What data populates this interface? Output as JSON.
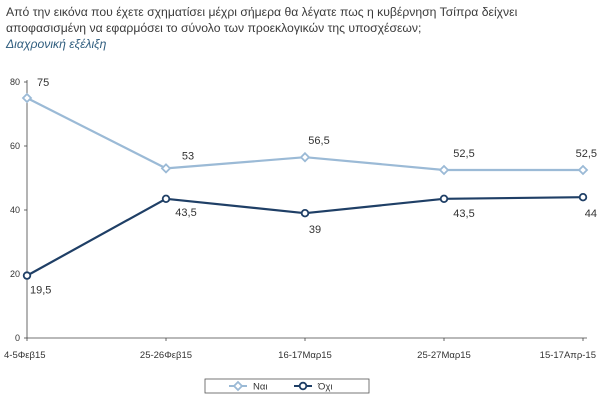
{
  "header": {
    "title": "Από την εικόνα που έχετε σχηματίσει μέχρι σήμερα θα λέγατε πως η κυβέρνηση Τσίπρα δείχνει αποφασισμένη να εφαρμόσει το σύνολο των προεκλογικών της υποσχέσεων;",
    "subtitle": "Διαχρονική εξέλιξη"
  },
  "chart_data": {
    "type": "line",
    "categories": [
      "4-5Φεβ15",
      "25-26Φεβ15",
      "16-17Μαρ15",
      "25-27Μαρ15",
      "15-17Απρ-15"
    ],
    "series": [
      {
        "name": "Ναι",
        "values": [
          75,
          53,
          56.5,
          52.5,
          52.5
        ],
        "labels": [
          "75",
          "53",
          "56,5",
          "52,5",
          "52,5"
        ],
        "color": "#9bbad6",
        "marker": "diamond"
      },
      {
        "name": "Όχι",
        "values": [
          19.5,
          43.5,
          39,
          43.5,
          44
        ],
        "labels": [
          "19,5",
          "43,5",
          "39",
          "43,5",
          "44"
        ],
        "color": "#1f3f66",
        "marker": "circle"
      }
    ],
    "ylim": [
      0,
      80
    ],
    "yticks": [
      0,
      20,
      40,
      60,
      80
    ],
    "grid": false,
    "legend_position": "bottom-center"
  }
}
